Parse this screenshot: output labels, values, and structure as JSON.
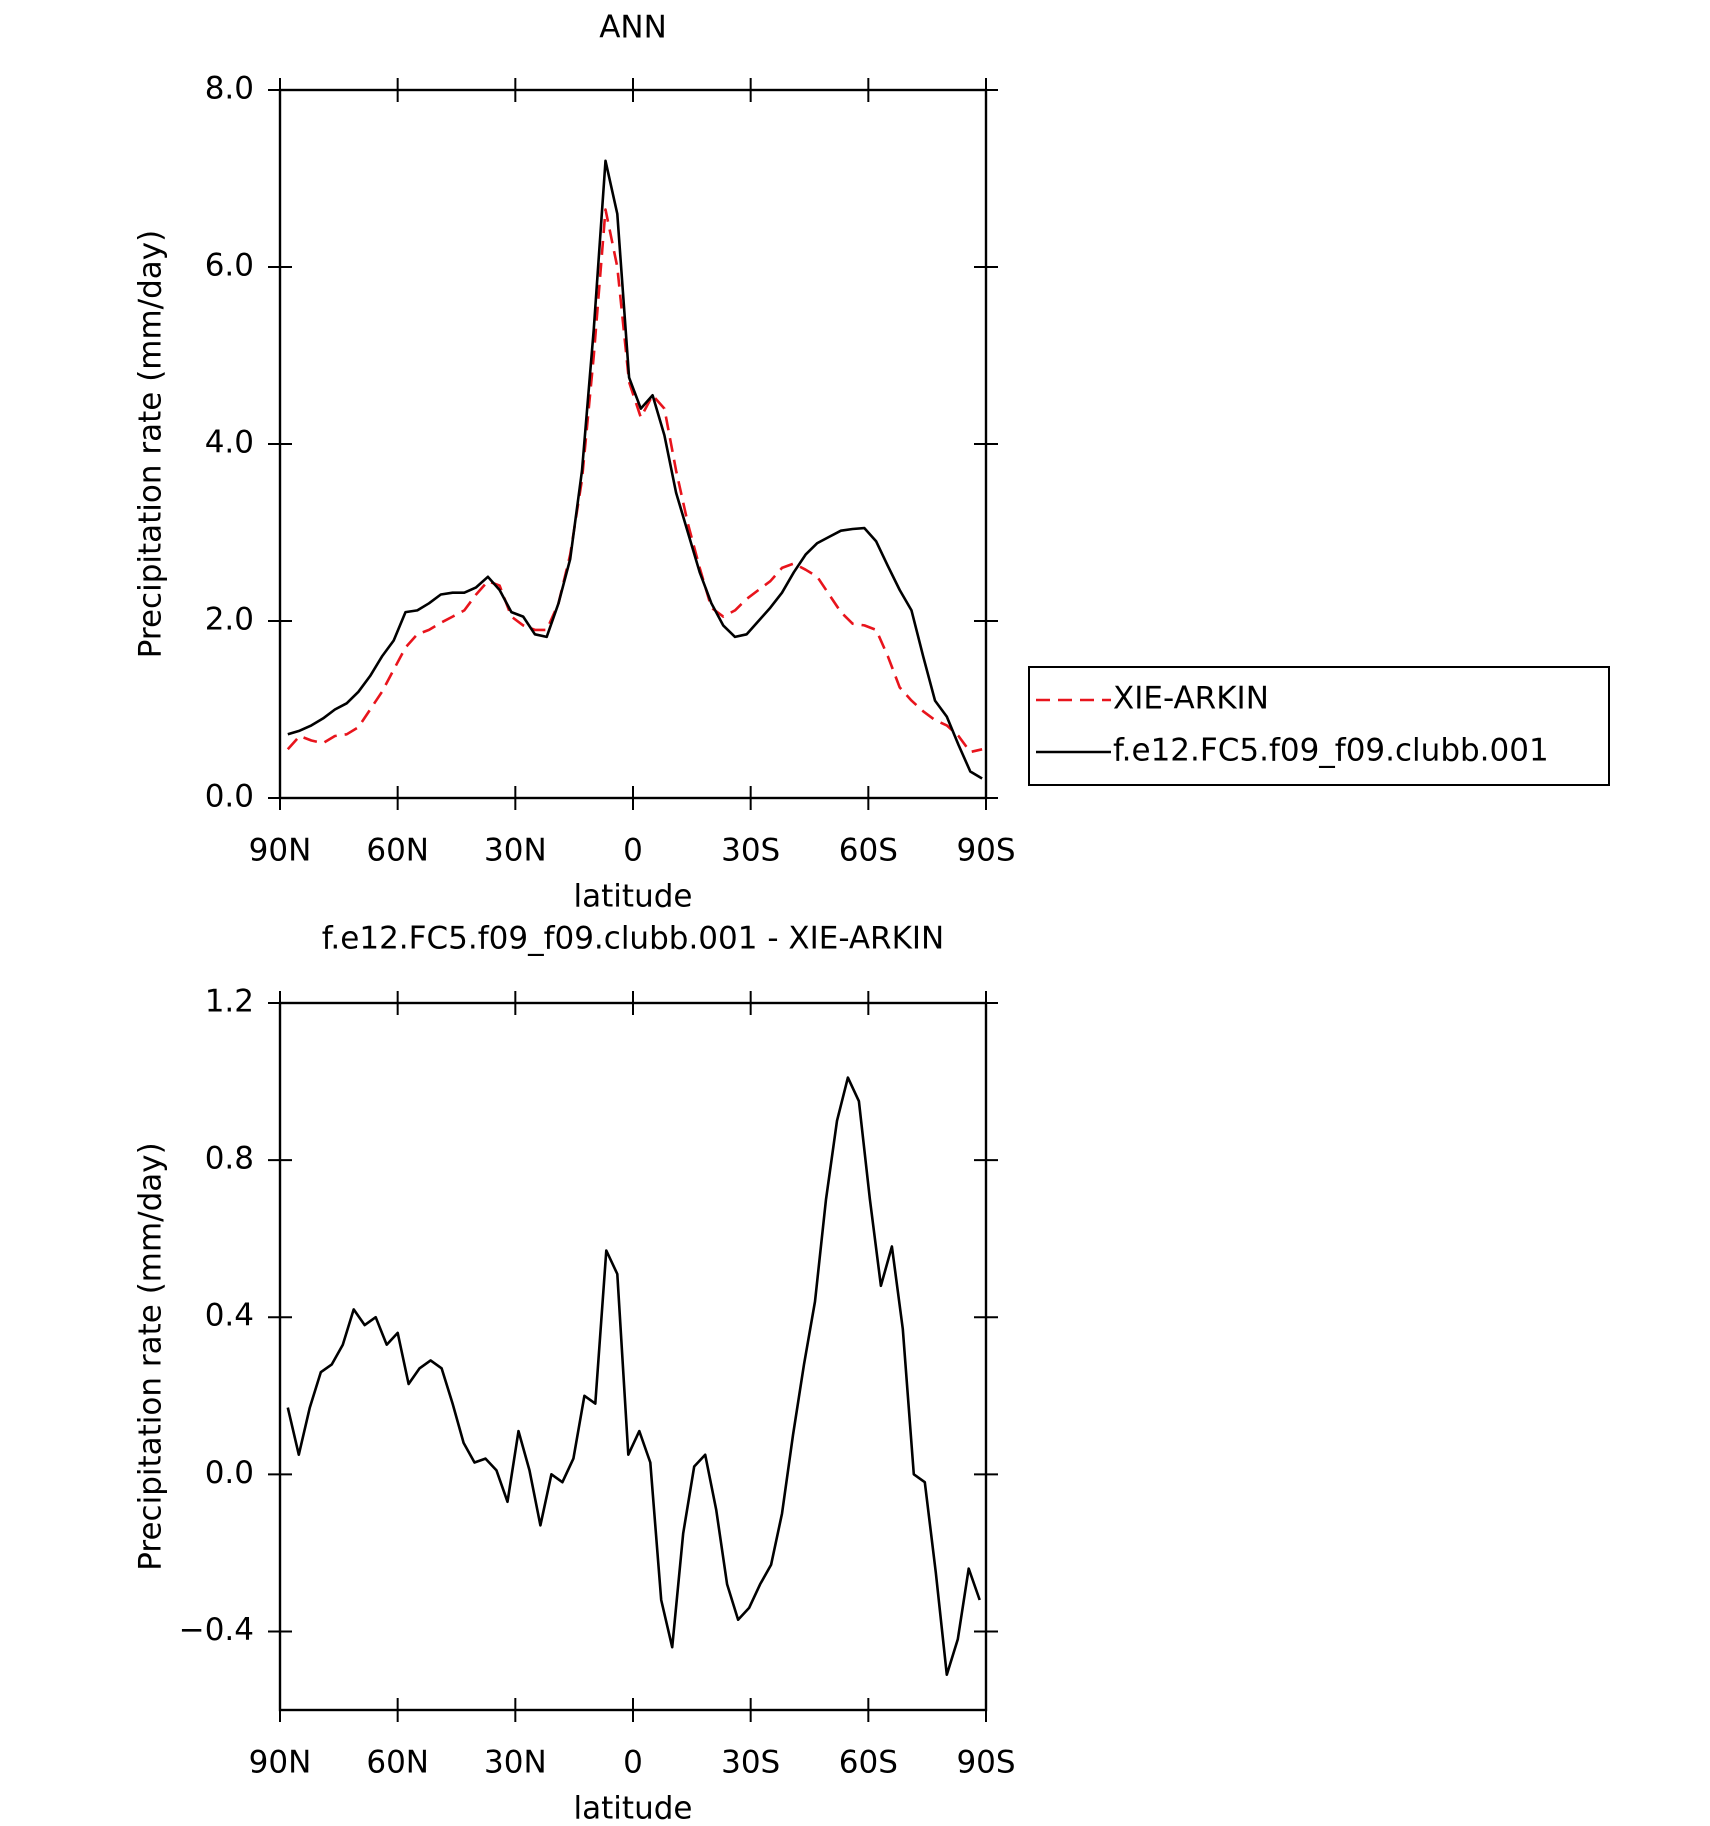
{
  "chart_data": [
    {
      "type": "line",
      "title": "ANN",
      "xlabel": "latitude",
      "ylabel": "Precipitation rate (mm/day)",
      "x": [
        88,
        85,
        82,
        79,
        76,
        73,
        70,
        67,
        64,
        61,
        58,
        55,
        52,
        49,
        46,
        43,
        40,
        37,
        34,
        31,
        28,
        25,
        22,
        19,
        16,
        13,
        10,
        7,
        4,
        1,
        -2,
        -5,
        -8,
        -11,
        -14,
        -17,
        -20,
        -23,
        -26,
        -29,
        -32,
        -35,
        -38,
        -41,
        -44,
        -47,
        -50,
        -53,
        -56,
        -59,
        -62,
        -65,
        -68,
        -71,
        -74,
        -77,
        -80,
        -83,
        -86,
        -89
      ],
      "series": [
        {
          "name": "XIE-ARKIN",
          "color": "#e8141c",
          "style": "dashed",
          "values": [
            0.55,
            0.7,
            0.65,
            0.62,
            0.7,
            0.72,
            0.8,
            1.0,
            1.2,
            1.45,
            1.7,
            1.85,
            1.9,
            1.98,
            2.05,
            2.12,
            2.3,
            2.45,
            2.4,
            2.05,
            1.95,
            1.9,
            1.9,
            2.2,
            2.75,
            3.6,
            5.0,
            6.65,
            6.0,
            4.7,
            4.3,
            4.55,
            4.4,
            3.7,
            3.1,
            2.6,
            2.15,
            2.05,
            2.12,
            2.25,
            2.35,
            2.45,
            2.6,
            2.65,
            2.58,
            2.5,
            2.3,
            2.1,
            1.97,
            1.95,
            1.9,
            1.6,
            1.25,
            1.1,
            0.98,
            0.88,
            0.82,
            0.7,
            0.52,
            0.55
          ]
        },
        {
          "name": "f.e12.FC5.f09_f09.clubb.001",
          "color": "#000000",
          "style": "solid",
          "values": [
            0.72,
            0.76,
            0.82,
            0.9,
            1.0,
            1.07,
            1.2,
            1.38,
            1.6,
            1.78,
            2.1,
            2.12,
            2.2,
            2.3,
            2.32,
            2.32,
            2.38,
            2.5,
            2.35,
            2.1,
            2.05,
            1.85,
            1.82,
            2.2,
            2.7,
            3.7,
            5.3,
            7.2,
            6.6,
            4.75,
            4.4,
            4.55,
            4.1,
            3.45,
            3.0,
            2.55,
            2.2,
            1.95,
            1.82,
            1.85,
            2.0,
            2.15,
            2.32,
            2.55,
            2.75,
            2.88,
            2.95,
            3.02,
            3.04,
            3.05,
            2.9,
            2.62,
            2.35,
            2.12,
            1.6,
            1.1,
            0.92,
            0.6,
            0.3,
            0.22
          ]
        }
      ],
      "xlim": [
        90,
        -90
      ],
      "xticks": [
        {
          "value": 90,
          "label": "90N"
        },
        {
          "value": 60,
          "label": "60N"
        },
        {
          "value": 30,
          "label": "30N"
        },
        0,
        {
          "value": -30,
          "label": "30S"
        },
        {
          "value": -60,
          "label": "60S"
        },
        {
          "value": -90,
          "label": "90S"
        }
      ],
      "ylim": [
        0,
        8
      ],
      "yticks": [
        {
          "value": 0,
          "label": "0.0"
        },
        {
          "value": 2,
          "label": "2.0"
        },
        {
          "value": 4,
          "label": "4.0"
        },
        {
          "value": 6,
          "label": "6.0"
        },
        {
          "value": 8,
          "label": "8.0"
        }
      ],
      "legend": "outside-right"
    },
    {
      "type": "line",
      "title": "f.e12.FC5.f09_f09.clubb.001 - XIE-ARKIN",
      "xlabel": "latitude",
      "ylabel": "Precipitation rate (mm/day)",
      "x": [
        88,
        85.2,
        82.4,
        79.6,
        76.8,
        74,
        71.2,
        68.4,
        65.6,
        62.8,
        60,
        57.2,
        54.4,
        51.6,
        48.8,
        46,
        43.2,
        40.4,
        37.6,
        34.8,
        32,
        29.2,
        26.4,
        23.6,
        20.8,
        18,
        15.2,
        12.4,
        9.6,
        6.8,
        4,
        1.2,
        -1.6,
        -4.4,
        -7.2,
        -10,
        -12.8,
        -15.6,
        -18.4,
        -21.2,
        -24,
        -26.8,
        -29.6,
        -32.4,
        -35.2,
        -38,
        -40.8,
        -43.6,
        -46.4,
        -49.2,
        -52,
        -54.8,
        -57.6,
        -60.4,
        -63.2,
        -66,
        -68.8,
        -71.6,
        -74.4,
        -77.2,
        -80,
        -82.8,
        -85.6,
        -88.4
      ],
      "color": "#000000",
      "values": [
        0.17,
        0.05,
        0.17,
        0.26,
        0.28,
        0.33,
        0.42,
        0.38,
        0.4,
        0.33,
        0.36,
        0.23,
        0.27,
        0.29,
        0.27,
        0.18,
        0.08,
        0.03,
        0.04,
        0.01,
        -0.07,
        0.11,
        0.01,
        -0.13,
        0.0,
        -0.02,
        0.04,
        0.2,
        0.18,
        0.57,
        0.51,
        0.05,
        0.11,
        0.03,
        -0.32,
        -0.44,
        -0.15,
        0.02,
        0.05,
        -0.09,
        -0.28,
        -0.37,
        -0.34,
        -0.28,
        -0.23,
        -0.1,
        0.1,
        0.28,
        0.44,
        0.7,
        0.9,
        1.01,
        0.95,
        0.7,
        0.48,
        0.58,
        0.37,
        0.0,
        -0.02,
        -0.25,
        -0.51,
        -0.42,
        -0.24,
        -0.32
      ],
      "xlim": [
        90,
        -90
      ],
      "xticks": [
        {
          "value": 90,
          "label": "90N"
        },
        {
          "value": 60,
          "label": "60N"
        },
        {
          "value": 30,
          "label": "30N"
        },
        0,
        {
          "value": -30,
          "label": "30S"
        },
        {
          "value": -60,
          "label": "60S"
        },
        {
          "value": -90,
          "label": "90S"
        }
      ],
      "ylim": [
        -0.6,
        1.2
      ],
      "yticks": [
        {
          "value": -0.4,
          "label": "−0.4"
        },
        {
          "value": 0,
          "label": "0.0"
        },
        0.4,
        0.8,
        1.2
      ]
    }
  ]
}
